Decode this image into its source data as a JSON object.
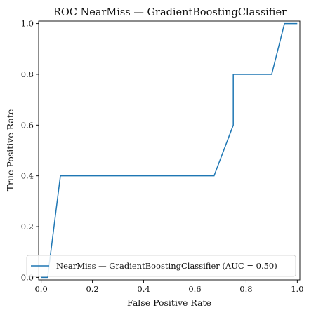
{
  "chart_data": {
    "type": "line",
    "title": "ROC NearMiss — GradientBoostingClassifier",
    "xlabel": "False Positive Rate",
    "ylabel": "True Positive Rate",
    "xlim": [
      -0.01,
      1.01
    ],
    "ylim": [
      -0.01,
      1.01
    ],
    "xticks": [
      0.0,
      0.2,
      0.4,
      0.6,
      0.8,
      1.0
    ],
    "yticks": [
      0.0,
      0.2,
      0.4,
      0.6,
      0.8,
      1.0
    ],
    "xtick_labels": [
      "0.0",
      "0.2",
      "0.4",
      "0.6",
      "0.8",
      "1.0"
    ],
    "ytick_labels": [
      "0.0",
      "0.2",
      "0.4",
      "0.6",
      "0.8",
      "1.0"
    ],
    "grid": false,
    "legend_position": "lower-right",
    "series": [
      {
        "name": "NearMiss — GradientBoostingClassifier (AUC = 0.50)",
        "color": "#1f77b4",
        "x": [
          0.0,
          0.025,
          0.075,
          0.675,
          0.75,
          0.75,
          0.9,
          0.95,
          1.0
        ],
        "y": [
          0.0,
          0.0,
          0.4,
          0.4,
          0.6,
          0.8,
          0.8,
          1.0,
          1.0
        ]
      }
    ]
  }
}
